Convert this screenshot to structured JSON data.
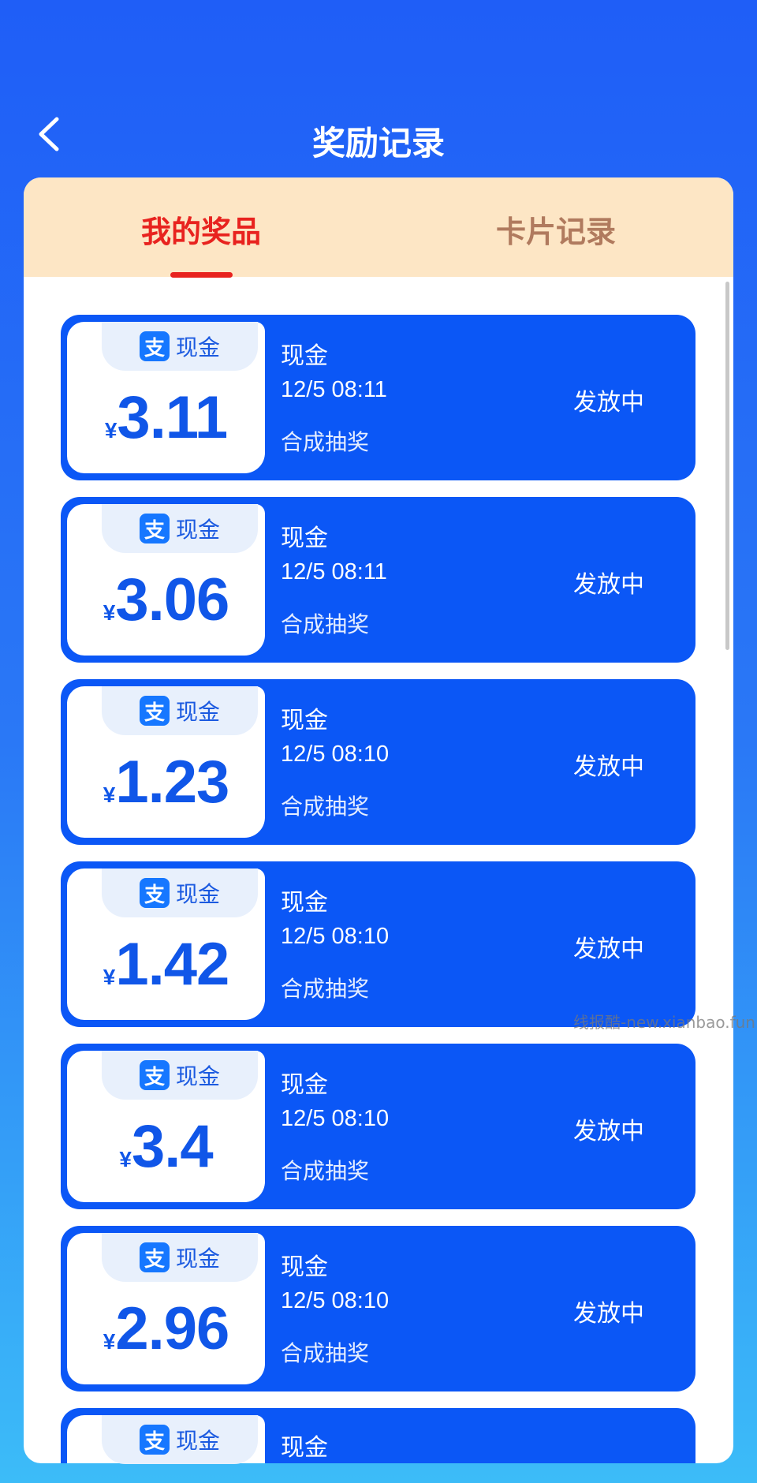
{
  "header": {
    "title": "奖励记录",
    "back_icon": "chevron-left-icon"
  },
  "tabs": [
    {
      "label": "我的奖品",
      "active": true
    },
    {
      "label": "卡片记录",
      "active": false
    }
  ],
  "colors": {
    "accent": "#0b57f6",
    "active_tab": "#e8231f",
    "tab_bar": "#fde6c5"
  },
  "items": [
    {
      "badge_icon": "支",
      "badge": "现金",
      "currency": "¥",
      "amount": "3.11",
      "name": "现金",
      "date": "12/5 08:11",
      "source": "合成抽奖",
      "status": "发放中"
    },
    {
      "badge_icon": "支",
      "badge": "现金",
      "currency": "¥",
      "amount": "3.06",
      "name": "现金",
      "date": "12/5 08:11",
      "source": "合成抽奖",
      "status": "发放中"
    },
    {
      "badge_icon": "支",
      "badge": "现金",
      "currency": "¥",
      "amount": "1.23",
      "name": "现金",
      "date": "12/5 08:10",
      "source": "合成抽奖",
      "status": "发放中"
    },
    {
      "badge_icon": "支",
      "badge": "现金",
      "currency": "¥",
      "amount": "1.42",
      "name": "现金",
      "date": "12/5 08:10",
      "source": "合成抽奖",
      "status": "发放中"
    },
    {
      "badge_icon": "支",
      "badge": "现金",
      "currency": "¥",
      "amount": "3.4",
      "name": "现金",
      "date": "12/5 08:10",
      "source": "合成抽奖",
      "status": "发放中"
    },
    {
      "badge_icon": "支",
      "badge": "现金",
      "currency": "¥",
      "amount": "2.96",
      "name": "现金",
      "date": "12/5 08:10",
      "source": "合成抽奖",
      "status": "发放中"
    },
    {
      "badge_icon": "支",
      "badge": "现金",
      "currency": "¥",
      "amount": "",
      "name": "现金",
      "date": "",
      "source": "",
      "status": ""
    }
  ],
  "watermark": "线报酷-new.xianbao.fun"
}
